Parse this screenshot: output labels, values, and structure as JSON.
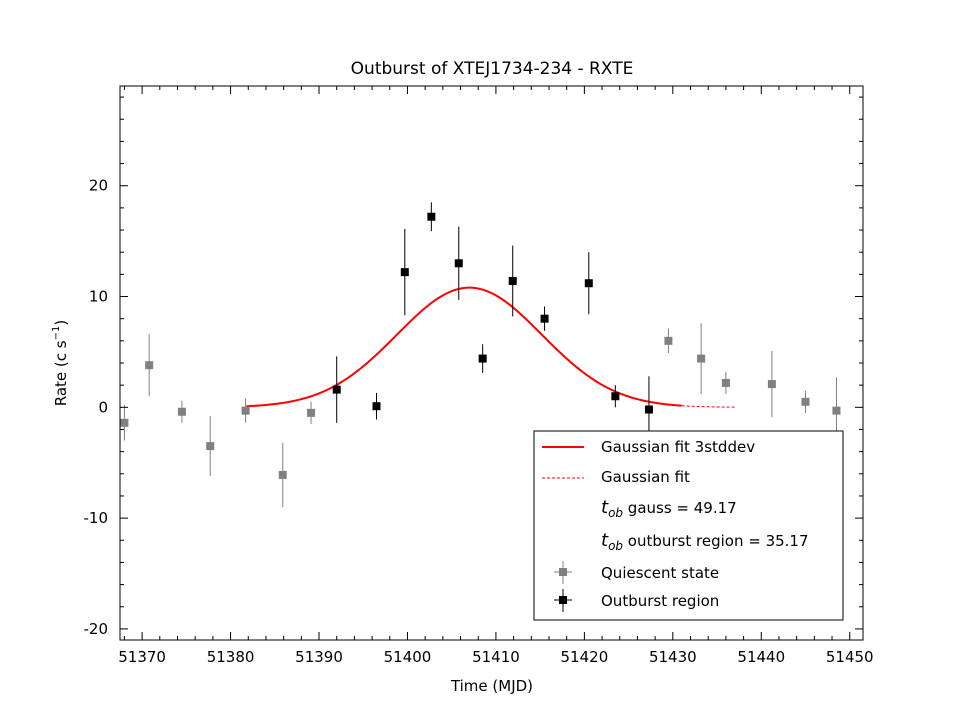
{
  "chart_data": {
    "type": "scatter",
    "title": "Outburst of XTEJ1734-234 - RXTE",
    "xlabel": "Time (MJD)",
    "ylabel": "Rate (c s",
    "ylabel_exponent": "−1",
    "ylabel_close": ")",
    "xlim": [
      51367.5,
      51451.5
    ],
    "ylim": [
      -21,
      29
    ],
    "xticks": [
      51370,
      51380,
      51390,
      51400,
      51410,
      51420,
      51430,
      51440,
      51450
    ],
    "xtick_labels": [
      "51370",
      "51380",
      "51390",
      "51400",
      "51410",
      "51420",
      "51430",
      "51440",
      "51450"
    ],
    "yticks": [
      -20,
      -10,
      0,
      10,
      20
    ],
    "ytick_labels": [
      "-20",
      "-10",
      "0",
      "10",
      "20"
    ],
    "series": [
      {
        "name": "Quiescent state",
        "color": "#808080",
        "points": [
          {
            "x": 51368.0,
            "y": -1.4,
            "err": 1.6
          },
          {
            "x": 51370.8,
            "y": 3.8,
            "err": 2.8
          },
          {
            "x": 51374.5,
            "y": -0.4,
            "err": 1.0
          },
          {
            "x": 51377.7,
            "y": -3.5,
            "err": 2.7
          },
          {
            "x": 51381.7,
            "y": -0.3,
            "err": 1.1
          },
          {
            "x": 51385.9,
            "y": -6.1,
            "err": 2.9
          },
          {
            "x": 51389.1,
            "y": -0.5,
            "err": 1.0
          },
          {
            "x": 51429.5,
            "y": 6.0,
            "err": 1.1
          },
          {
            "x": 51433.2,
            "y": 4.4,
            "err": 3.2
          },
          {
            "x": 51436.0,
            "y": 2.2,
            "err": 1.0
          },
          {
            "x": 51441.2,
            "y": 2.1,
            "err": 3.0
          },
          {
            "x": 51445.0,
            "y": 0.5,
            "err": 1.0
          },
          {
            "x": 51448.5,
            "y": -0.3,
            "err": 3.0
          }
        ]
      },
      {
        "name": "Outburst region",
        "color": "#000000",
        "points": [
          {
            "x": 51392.0,
            "y": 1.6,
            "err": 3.0
          },
          {
            "x": 51396.5,
            "y": 0.1,
            "err": 1.2
          },
          {
            "x": 51399.7,
            "y": 12.2,
            "err": 3.9
          },
          {
            "x": 51402.7,
            "y": 17.2,
            "err": 1.3
          },
          {
            "x": 51405.8,
            "y": 13.0,
            "err": 3.3
          },
          {
            "x": 51408.5,
            "y": 4.4,
            "err": 1.3
          },
          {
            "x": 51411.9,
            "y": 11.4,
            "err": 3.2
          },
          {
            "x": 51415.5,
            "y": 8.0,
            "err": 1.1
          },
          {
            "x": 51420.5,
            "y": 11.2,
            "err": 2.8
          },
          {
            "x": 51423.5,
            "y": 1.0,
            "err": 1.0
          },
          {
            "x": 51427.3,
            "y": -0.2,
            "err": 3.0
          }
        ]
      }
    ],
    "fit": {
      "name_solid": "Gaussian fit 3stddev",
      "name_dashed": "Gaussian fit",
      "color": "#ff0000",
      "amplitude": 10.8,
      "mean": 51407.0,
      "sigma": 8.2,
      "solid_range": [
        51381.8,
        51431.0
      ],
      "dashed_range": [
        51431.0,
        51437.0
      ]
    },
    "annotations": [
      {
        "symbol": "t",
        "subscript": "ob",
        "text": " gauss = 49.17"
      },
      {
        "symbol": "t",
        "subscript": "ob",
        "text": " outburst region = 35.17"
      }
    ],
    "legend": {
      "position": "lower-right",
      "entries": [
        "Gaussian fit 3stddev",
        "Gaussian fit",
        "Quiescent state",
        "Outburst region"
      ]
    },
    "grid": false
  }
}
